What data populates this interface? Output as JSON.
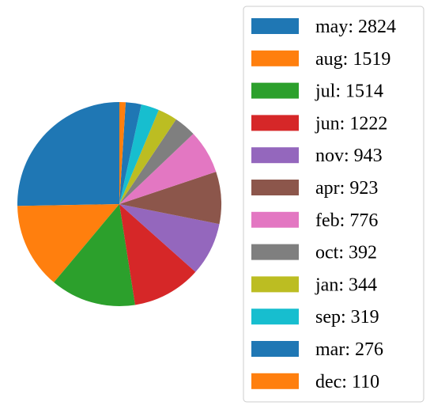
{
  "chart_data": {
    "type": "pie",
    "title": "",
    "legend_placement": "right",
    "series": [
      {
        "label": "may: 2824",
        "value": 2824,
        "color": "#1f77b4"
      },
      {
        "label": "aug: 1519",
        "value": 1519,
        "color": "#ff7f0e"
      },
      {
        "label": "jul: 1514",
        "value": 1514,
        "color": "#2ca02c"
      },
      {
        "label": "jun: 1222",
        "value": 1222,
        "color": "#d62728"
      },
      {
        "label": "nov: 943",
        "value": 943,
        "color": "#9467bd"
      },
      {
        "label": "apr: 923",
        "value": 923,
        "color": "#8c564b"
      },
      {
        "label": "feb: 776",
        "value": 776,
        "color": "#e377c2"
      },
      {
        "label": "oct: 392",
        "value": 392,
        "color": "#7f7f7f"
      },
      {
        "label": "jan: 344",
        "value": 344,
        "color": "#bcbd22"
      },
      {
        "label": "sep: 319",
        "value": 319,
        "color": "#17becf"
      },
      {
        "label": "mar: 276",
        "value": 276,
        "color": "#1f77b4"
      },
      {
        "label": "dec: 110",
        "value": 110,
        "color": "#ff7f0e"
      }
    ]
  }
}
